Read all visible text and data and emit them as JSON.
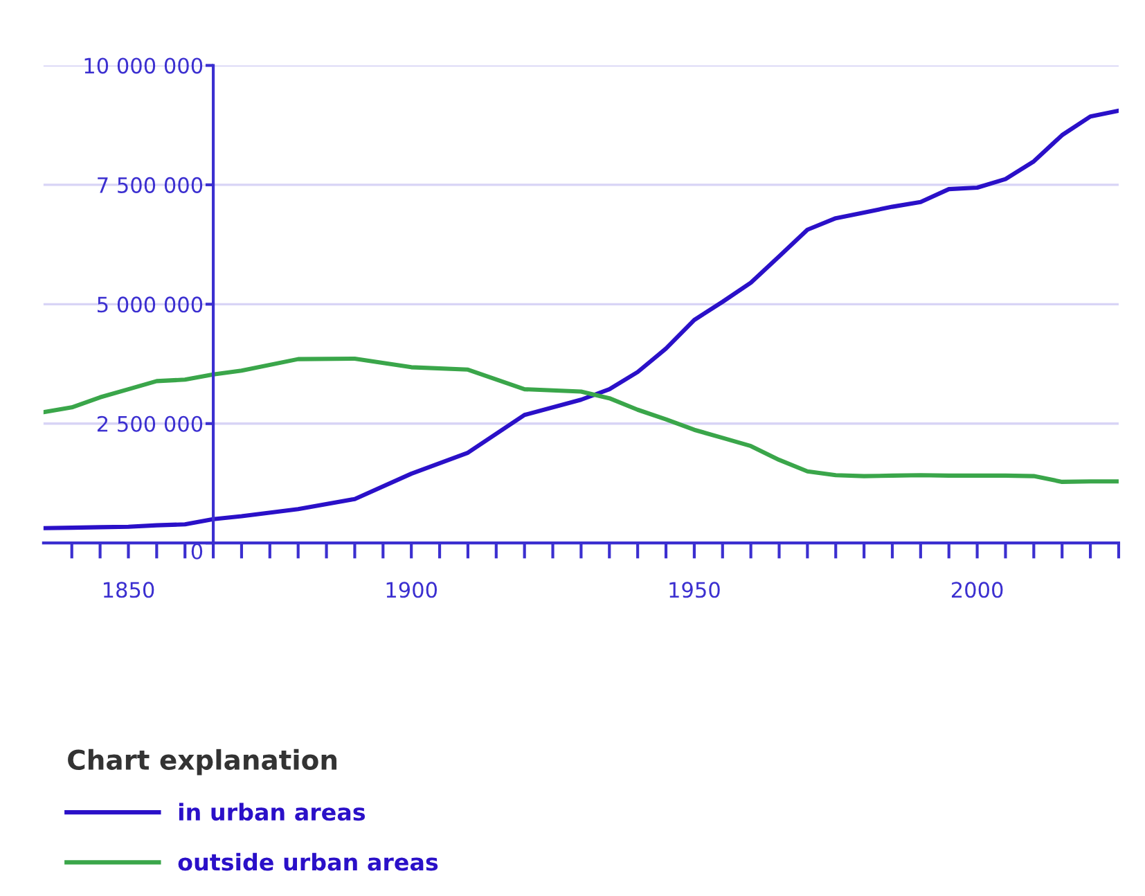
{
  "chart_data": {
    "type": "line",
    "x": [
      1835,
      1840,
      1845,
      1850,
      1855,
      1860,
      1865,
      1870,
      1880,
      1890,
      1900,
      1910,
      1920,
      1930,
      1935,
      1940,
      1945,
      1950,
      1955,
      1960,
      1965,
      1970,
      1975,
      1980,
      1985,
      1990,
      1995,
      2000,
      2005,
      2010,
      2015,
      2020,
      2025
    ],
    "series": [
      {
        "name": "in urban areas",
        "color": "#2a10c8",
        "values": [
          310000,
          320000,
          330000,
          340000,
          370000,
          390000,
          500000,
          560000,
          710000,
          920000,
          1450000,
          1890000,
          2680000,
          3000000,
          3220000,
          3580000,
          4070000,
          4670000,
          5050000,
          5450000,
          6000000,
          6560000,
          6800000,
          6920000,
          7040000,
          7140000,
          7410000,
          7440000,
          7620000,
          7990000,
          8540000,
          8930000,
          9050000
        ]
      },
      {
        "name": "outside urban areas",
        "color": "#3aa64a",
        "values": [
          2740000,
          2840000,
          3050000,
          3220000,
          3390000,
          3420000,
          3530000,
          3610000,
          3850000,
          3860000,
          3680000,
          3630000,
          3220000,
          3170000,
          3030000,
          2790000,
          2590000,
          2370000,
          2200000,
          2030000,
          1740000,
          1500000,
          1420000,
          1400000,
          1410000,
          1420000,
          1410000,
          1410000,
          1410000,
          1400000,
          1280000,
          1290000,
          1290000
        ]
      }
    ],
    "xlim": [
      1835,
      2025
    ],
    "xticks": [
      {
        "value": 1840,
        "label": null
      },
      {
        "value": 1845,
        "label": null
      },
      1850,
      {
        "value": 1855,
        "label": null
      },
      {
        "value": 1860,
        "label": null
      },
      {
        "value": 1865,
        "label": null
      },
      {
        "value": 1870,
        "label": null
      },
      {
        "value": 1875,
        "label": null
      },
      {
        "value": 1880,
        "label": null
      },
      {
        "value": 1885,
        "label": null
      },
      {
        "value": 1890,
        "label": null
      },
      {
        "value": 1895,
        "label": null
      },
      1900,
      {
        "value": 1905,
        "label": null
      },
      {
        "value": 1910,
        "label": null
      },
      {
        "value": 1915,
        "label": null
      },
      {
        "value": 1920,
        "label": null
      },
      {
        "value": 1925,
        "label": null
      },
      {
        "value": 1930,
        "label": null
      },
      {
        "value": 1935,
        "label": null
      },
      {
        "value": 1940,
        "label": null
      },
      {
        "value": 1945,
        "label": null
      },
      1950,
      {
        "value": 1955,
        "label": null
      },
      {
        "value": 1960,
        "label": null
      },
      {
        "value": 1965,
        "label": null
      },
      {
        "value": 1970,
        "label": null
      },
      {
        "value": 1975,
        "label": null
      },
      {
        "value": 1980,
        "label": null
      },
      {
        "value": 1985,
        "label": null
      },
      {
        "value": 1990,
        "label": null
      },
      {
        "value": 1995,
        "label": null
      },
      2000,
      {
        "value": 2005,
        "label": null
      },
      {
        "value": 2010,
        "label": null
      },
      {
        "value": 2015,
        "label": null
      },
      {
        "value": 2020,
        "label": null
      },
      {
        "value": 2025,
        "label": null
      }
    ],
    "ylim": [
      0,
      10000000
    ],
    "yticks": [
      0,
      {
        "value": 2500000,
        "label": "2 500 000"
      },
      {
        "value": 5000000,
        "label": "5 000 000"
      },
      {
        "value": 7500000,
        "label": "7 500 000"
      },
      {
        "value": 10000000,
        "label": "10 000 000"
      }
    ],
    "grid": "y",
    "legend": "bottom left",
    "legend_title": "Chart explanation",
    "marker": "none",
    "line_style": "solid"
  }
}
